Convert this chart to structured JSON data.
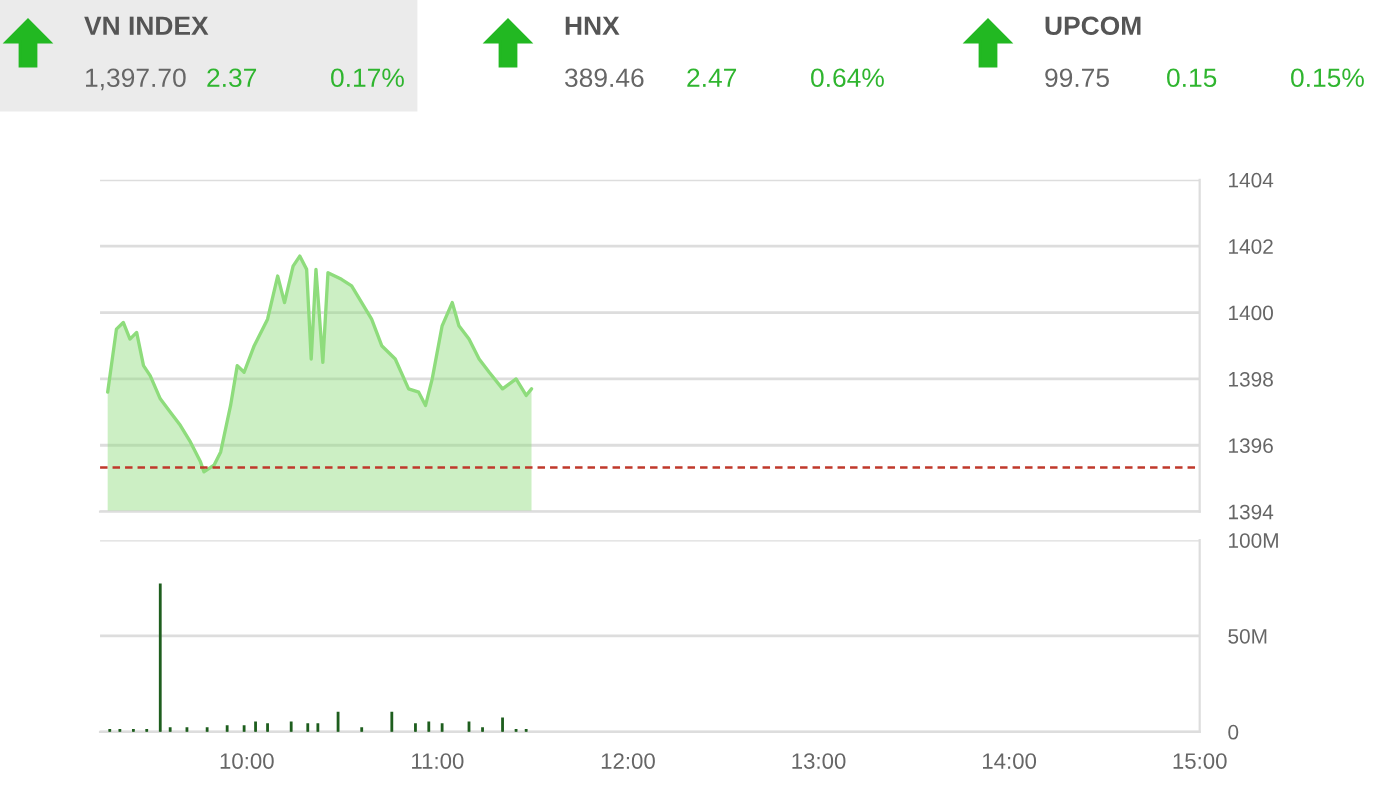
{
  "chart_data": [
    {
      "type": "area",
      "color": "#8edc7c",
      "annotations": [
        "VN INDEX",
        "1,397.70",
        "2.37",
        "0.17%",
        "HNX",
        "389.46",
        "2.47",
        "0.64%",
        "UPCOM",
        "99.75",
        "0.15",
        "0.15%"
      ],
      "x": [
        9.27,
        9.316,
        9.352,
        9.387,
        9.422,
        9.458,
        9.493,
        9.546,
        9.598,
        9.651,
        9.704,
        9.757,
        9.775,
        9.828,
        9.863,
        9.915,
        9.95,
        9.986,
        10.039,
        10.109,
        10.162,
        10.198,
        10.243,
        10.278,
        10.314,
        10.338,
        10.363,
        10.399,
        10.426,
        10.497,
        10.55,
        10.603,
        10.655,
        10.708,
        10.779,
        10.849,
        10.902,
        10.938,
        10.973,
        11.025,
        11.078,
        11.113,
        11.166,
        11.219,
        11.272,
        11.342,
        11.413,
        11.466,
        11.494
      ],
      "values": [
        1397.6,
        1399.5,
        1399.7,
        1399.2,
        1399.4,
        1398.4,
        1398.1,
        1397.4,
        1397.0,
        1396.6,
        1396.1,
        1395.5,
        1395.2,
        1395.4,
        1395.8,
        1397.2,
        1398.4,
        1398.2,
        1399.0,
        1399.8,
        1401.1,
        1400.3,
        1401.4,
        1401.7,
        1401.3,
        1398.6,
        1401.3,
        1398.5,
        1401.2,
        1401.0,
        1400.8,
        1400.3,
        1399.8,
        1399.0,
        1398.6,
        1397.7,
        1397.6,
        1397.2,
        1398.0,
        1399.6,
        1400.3,
        1399.6,
        1399.2,
        1398.6,
        1398.2,
        1397.7,
        1398.0,
        1397.5,
        1397.7
      ],
      "xlim": [
        9.23,
        15
      ],
      "ylim": [
        1394,
        1404
      ],
      "yticks": [
        1394,
        1396,
        1398,
        1400,
        1402,
        1404
      ],
      "ref_lines": [
        {
          "axis": "y",
          "value": 1395.33,
          "color": "#c0392b",
          "line_style": "dashed"
        }
      ],
      "grid": "y",
      "tick_labels": "y"
    },
    {
      "type": "bar",
      "color": "#1e5e1e",
      "x": [
        9.281,
        9.334,
        9.405,
        9.475,
        9.546,
        9.598,
        9.686,
        9.792,
        9.897,
        9.986,
        10.046,
        10.109,
        10.233,
        10.32,
        10.373,
        10.479,
        10.603,
        10.761,
        10.885,
        10.955,
        11.025,
        11.166,
        11.237,
        11.342,
        11.413,
        11.466
      ],
      "values": [
        1,
        1,
        1,
        1,
        77,
        2,
        2,
        2,
        3,
        3,
        5,
        4,
        5,
        4,
        4,
        10,
        2,
        10,
        4,
        5,
        4,
        5,
        2,
        7,
        1,
        1
      ],
      "xlim": [
        9.23,
        15
      ],
      "ylim": [
        0,
        100
      ],
      "yticks": [
        0,
        {
          "value": 50,
          "label": "50M"
        },
        {
          "value": 100,
          "label": "100M"
        }
      ],
      "xticks": [
        {
          "value": 10,
          "label": "10:00"
        },
        {
          "value": 11,
          "label": "11:00"
        },
        {
          "value": 12,
          "label": "12:00"
        },
        {
          "value": 13,
          "label": "13:00"
        },
        {
          "value": 14,
          "label": "14:00"
        },
        {
          "value": 15,
          "label": "15:00"
        }
      ],
      "grid": "y"
    }
  ]
}
